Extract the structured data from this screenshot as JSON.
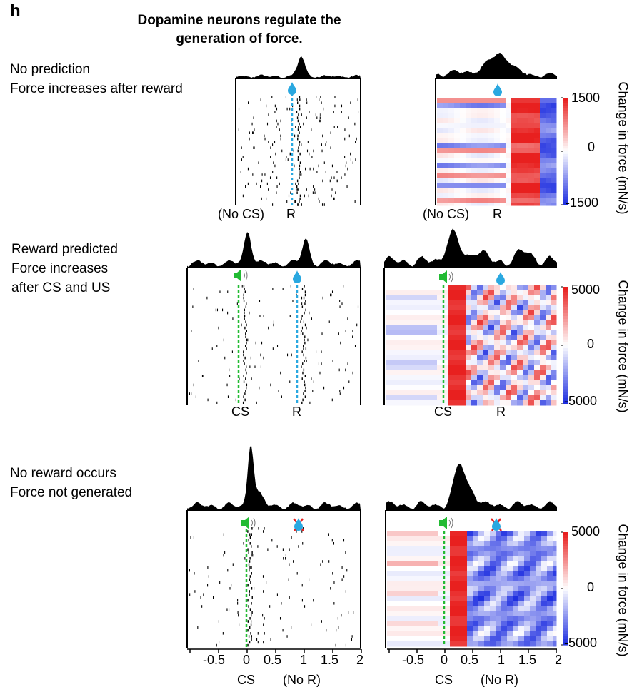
{
  "panel_letter": "h",
  "title": "Dopamine neurons regulate the generation of force.",
  "rows": [
    {
      "condition": [
        "No prediction",
        "Force increases after reward"
      ],
      "raster_labels": {
        "cs": "(No CS)",
        "reward": "R"
      },
      "heatmap_labels": {
        "cs": "(No CS)",
        "reward": "R"
      },
      "colorbar": {
        "max": "1500",
        "mid": "0",
        "min": "-1500"
      },
      "colorbar_title": "Change in force (mN/s)"
    },
    {
      "condition": [
        "Reward predicted",
        "Force increases",
        "after CS and US"
      ],
      "raster_labels": {
        "cs": "CS",
        "reward": "R"
      },
      "heatmap_labels": {
        "cs": "CS",
        "reward": "R"
      },
      "colorbar": {
        "max": "5000",
        "mid": "0",
        "min": "-5000"
      },
      "colorbar_title": "Change in force (mN/s)"
    },
    {
      "condition": [
        "No reward occurs",
        "Force not generated"
      ],
      "raster_labels": {
        "cs": "CS",
        "reward": "(No R)"
      },
      "heatmap_labels": {
        "cs": "CS",
        "reward": "(No R)"
      },
      "colorbar": {
        "max": "5000",
        "mid": "0",
        "min": "-5000"
      },
      "colorbar_title": "Change in force (mN/s)"
    }
  ],
  "x_axis": {
    "ticks": [
      "-0.5",
      "0",
      "0.5",
      "1",
      "1.5",
      "2"
    ]
  },
  "colors": {
    "cs_line": "#22bb33",
    "reward_line": "#2aa8e0",
    "heat_pos": "#e8201f",
    "heat_neg": "#1f2fe0",
    "omission_cross": "#e8201f"
  },
  "icons": [
    "water-drop-icon",
    "speaker-icon",
    "omitted-reward-icon"
  ]
}
